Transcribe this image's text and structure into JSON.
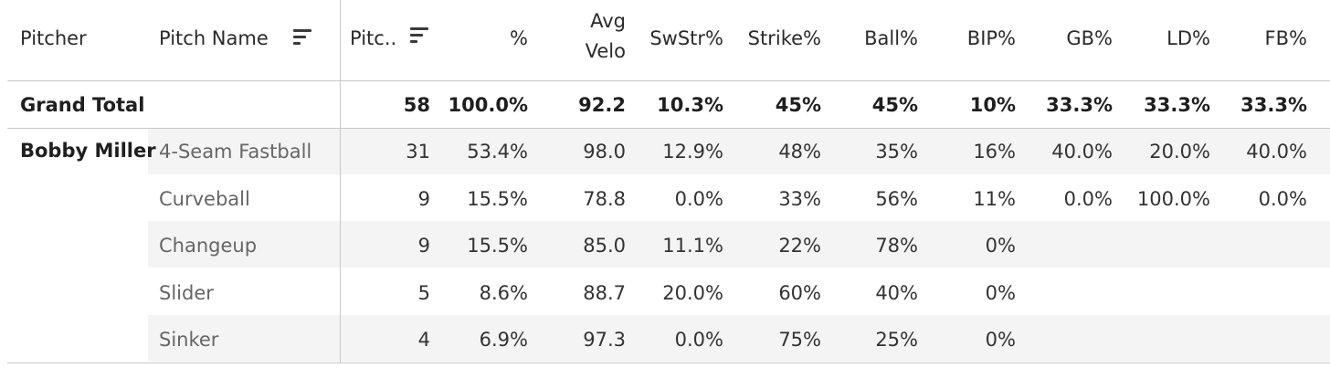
{
  "table": {
    "headers": {
      "pitcher": "Pitcher",
      "pitch_name": "Pitch Name",
      "pitches": "Pitc..",
      "pct": "%",
      "avg_velo_line1": "Avg",
      "avg_velo_line2": "Velo",
      "swstr": "SwStr%",
      "strike": "Strike%",
      "ball": "Ball%",
      "bip": "BIP%",
      "gb": "GB%",
      "ld": "LD%",
      "fb": "FB%"
    },
    "grand_total": {
      "label": "Grand Total",
      "pitches": "58",
      "pct": "100.0%",
      "avg_velo": "92.2",
      "swstr": "10.3%",
      "strike": "45%",
      "ball": "45%",
      "bip": "10%",
      "gb": "33.3%",
      "ld": "33.3%",
      "fb": "33.3%"
    },
    "pitcher_name": "Bobby Miller",
    "rows": [
      {
        "pitch": "4-Seam Fastball",
        "pitches": "31",
        "pct": "53.4%",
        "avg_velo": "98.0",
        "swstr": "12.9%",
        "strike": "48%",
        "ball": "35%",
        "bip": "16%",
        "gb": "40.0%",
        "ld": "20.0%",
        "fb": "40.0%"
      },
      {
        "pitch": "Curveball",
        "pitches": "9",
        "pct": "15.5%",
        "avg_velo": "78.8",
        "swstr": "0.0%",
        "strike": "33%",
        "ball": "56%",
        "bip": "11%",
        "gb": "0.0%",
        "ld": "100.0%",
        "fb": "0.0%"
      },
      {
        "pitch": "Changeup",
        "pitches": "9",
        "pct": "15.5%",
        "avg_velo": "85.0",
        "swstr": "11.1%",
        "strike": "22%",
        "ball": "78%",
        "bip": "0%",
        "gb": "",
        "ld": "",
        "fb": ""
      },
      {
        "pitch": "Slider",
        "pitches": "5",
        "pct": "8.6%",
        "avg_velo": "88.7",
        "swstr": "20.0%",
        "strike": "60%",
        "ball": "40%",
        "bip": "0%",
        "gb": "",
        "ld": "",
        "fb": ""
      },
      {
        "pitch": "Sinker",
        "pitches": "4",
        "pct": "6.9%",
        "avg_velo": "97.3",
        "swstr": "0.0%",
        "strike": "75%",
        "ball": "25%",
        "bip": "0%",
        "gb": "",
        "ld": "",
        "fb": ""
      }
    ],
    "sort_icons": [
      "sort-descending-icon",
      "sort-descending-icon"
    ],
    "colors": {
      "band": "#f4f4f4",
      "grid_line": "#c8c8c8",
      "text": "#222222",
      "pitch_text": "#666666"
    }
  }
}
